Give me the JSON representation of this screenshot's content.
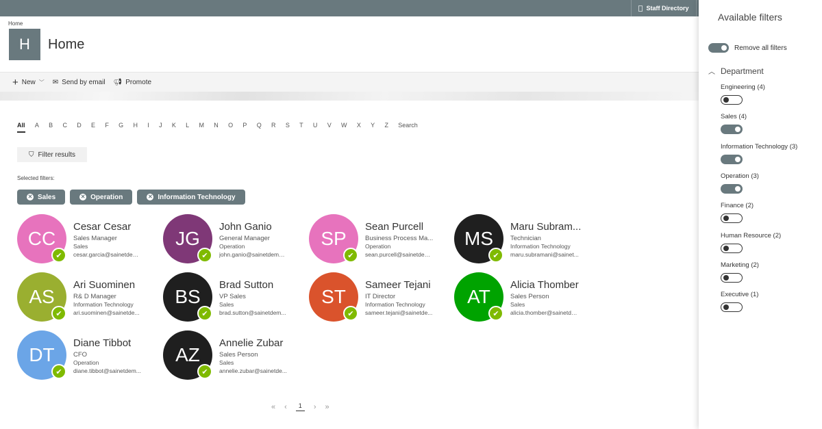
{
  "topbar": {
    "staff_directory": "Staff Directory"
  },
  "breadcrumb": "Home",
  "site": {
    "logo_letter": "H",
    "title": "Home"
  },
  "commands": {
    "new": "New",
    "send": "Send by email",
    "promote": "Promote"
  },
  "alphabet": [
    "All",
    "A",
    "B",
    "C",
    "D",
    "E",
    "F",
    "G",
    "H",
    "I",
    "J",
    "K",
    "L",
    "M",
    "N",
    "O",
    "P",
    "Q",
    "R",
    "S",
    "T",
    "U",
    "V",
    "W",
    "X",
    "Y",
    "Z",
    "Search"
  ],
  "filter_button": "Filter results",
  "selected_label": "Selected filters:",
  "chips": [
    "Sales",
    "Operation",
    "Information Technology"
  ],
  "people": [
    {
      "initials": "CC",
      "name": "Cesar Cesar",
      "title": "Sales Manager",
      "dept": "Sales",
      "email": "cesar.garcia@sainetdem...",
      "color": "#e773bd"
    },
    {
      "initials": "JG",
      "name": "John Ganio",
      "title": "General Manager",
      "dept": "Operation",
      "email": "john.ganio@sainetdemo....",
      "color": "#7f3877"
    },
    {
      "initials": "SP",
      "name": "Sean Purcell",
      "title": "Business Process Ma...",
      "dept": "Operation",
      "email": "sean.purcell@sainetdem...",
      "color": "#e773bd"
    },
    {
      "initials": "MS",
      "name": "Maru Subram...",
      "title": "Technician",
      "dept": "Information Technology",
      "email": "maru.subramani@sainet...",
      "color": "#1f1f1f"
    },
    {
      "initials": "AS",
      "name": "Ari Suominen",
      "title": "R& D Manager",
      "dept": "Information Technology",
      "email": "ari.suominen@sainetde...",
      "color": "#9aaf30"
    },
    {
      "initials": "BS",
      "name": "Brad Sutton",
      "title": "VP Sales",
      "dept": "Sales",
      "email": "brad.sutton@sainetdem...",
      "color": "#1f1f1f"
    },
    {
      "initials": "ST",
      "name": "Sameer Tejani",
      "title": "IT Director",
      "dept": "Information Technology",
      "email": "sameer.tejani@sainetde...",
      "color": "#da532c"
    },
    {
      "initials": "AT",
      "name": "Alicia Thomber",
      "title": "Sales Person",
      "dept": "Sales",
      "email": "alicia.thomber@sainetde...",
      "color": "#00a300"
    },
    {
      "initials": "DT",
      "name": "Diane Tibbot",
      "title": "CFO",
      "dept": "Operation",
      "email": "diane.tibbot@sainetdem...",
      "color": "#6ba5e7"
    },
    {
      "initials": "AZ",
      "name": "Annelie Zubar",
      "title": "Sales Person",
      "dept": "Sales",
      "email": "annelie.zubar@sainetde...",
      "color": "#1f1f1f"
    }
  ],
  "pager": {
    "first": "«",
    "prev": "‹",
    "current": "1",
    "next": "›",
    "last": "»"
  },
  "panel": {
    "title": "Available filters",
    "remove_all": "Remove all filters",
    "group": "Department",
    "filters": [
      {
        "label": "Engineering (4)",
        "on": false
      },
      {
        "label": "Sales (4)",
        "on": true
      },
      {
        "label": "Information Technology (3)",
        "on": true
      },
      {
        "label": "Operation (3)",
        "on": true
      },
      {
        "label": "Finance (2)",
        "on": false
      },
      {
        "label": "Human Resource (2)",
        "on": false
      },
      {
        "label": "Marketing (2)",
        "on": false
      },
      {
        "label": "Executive (1)",
        "on": false
      }
    ]
  }
}
